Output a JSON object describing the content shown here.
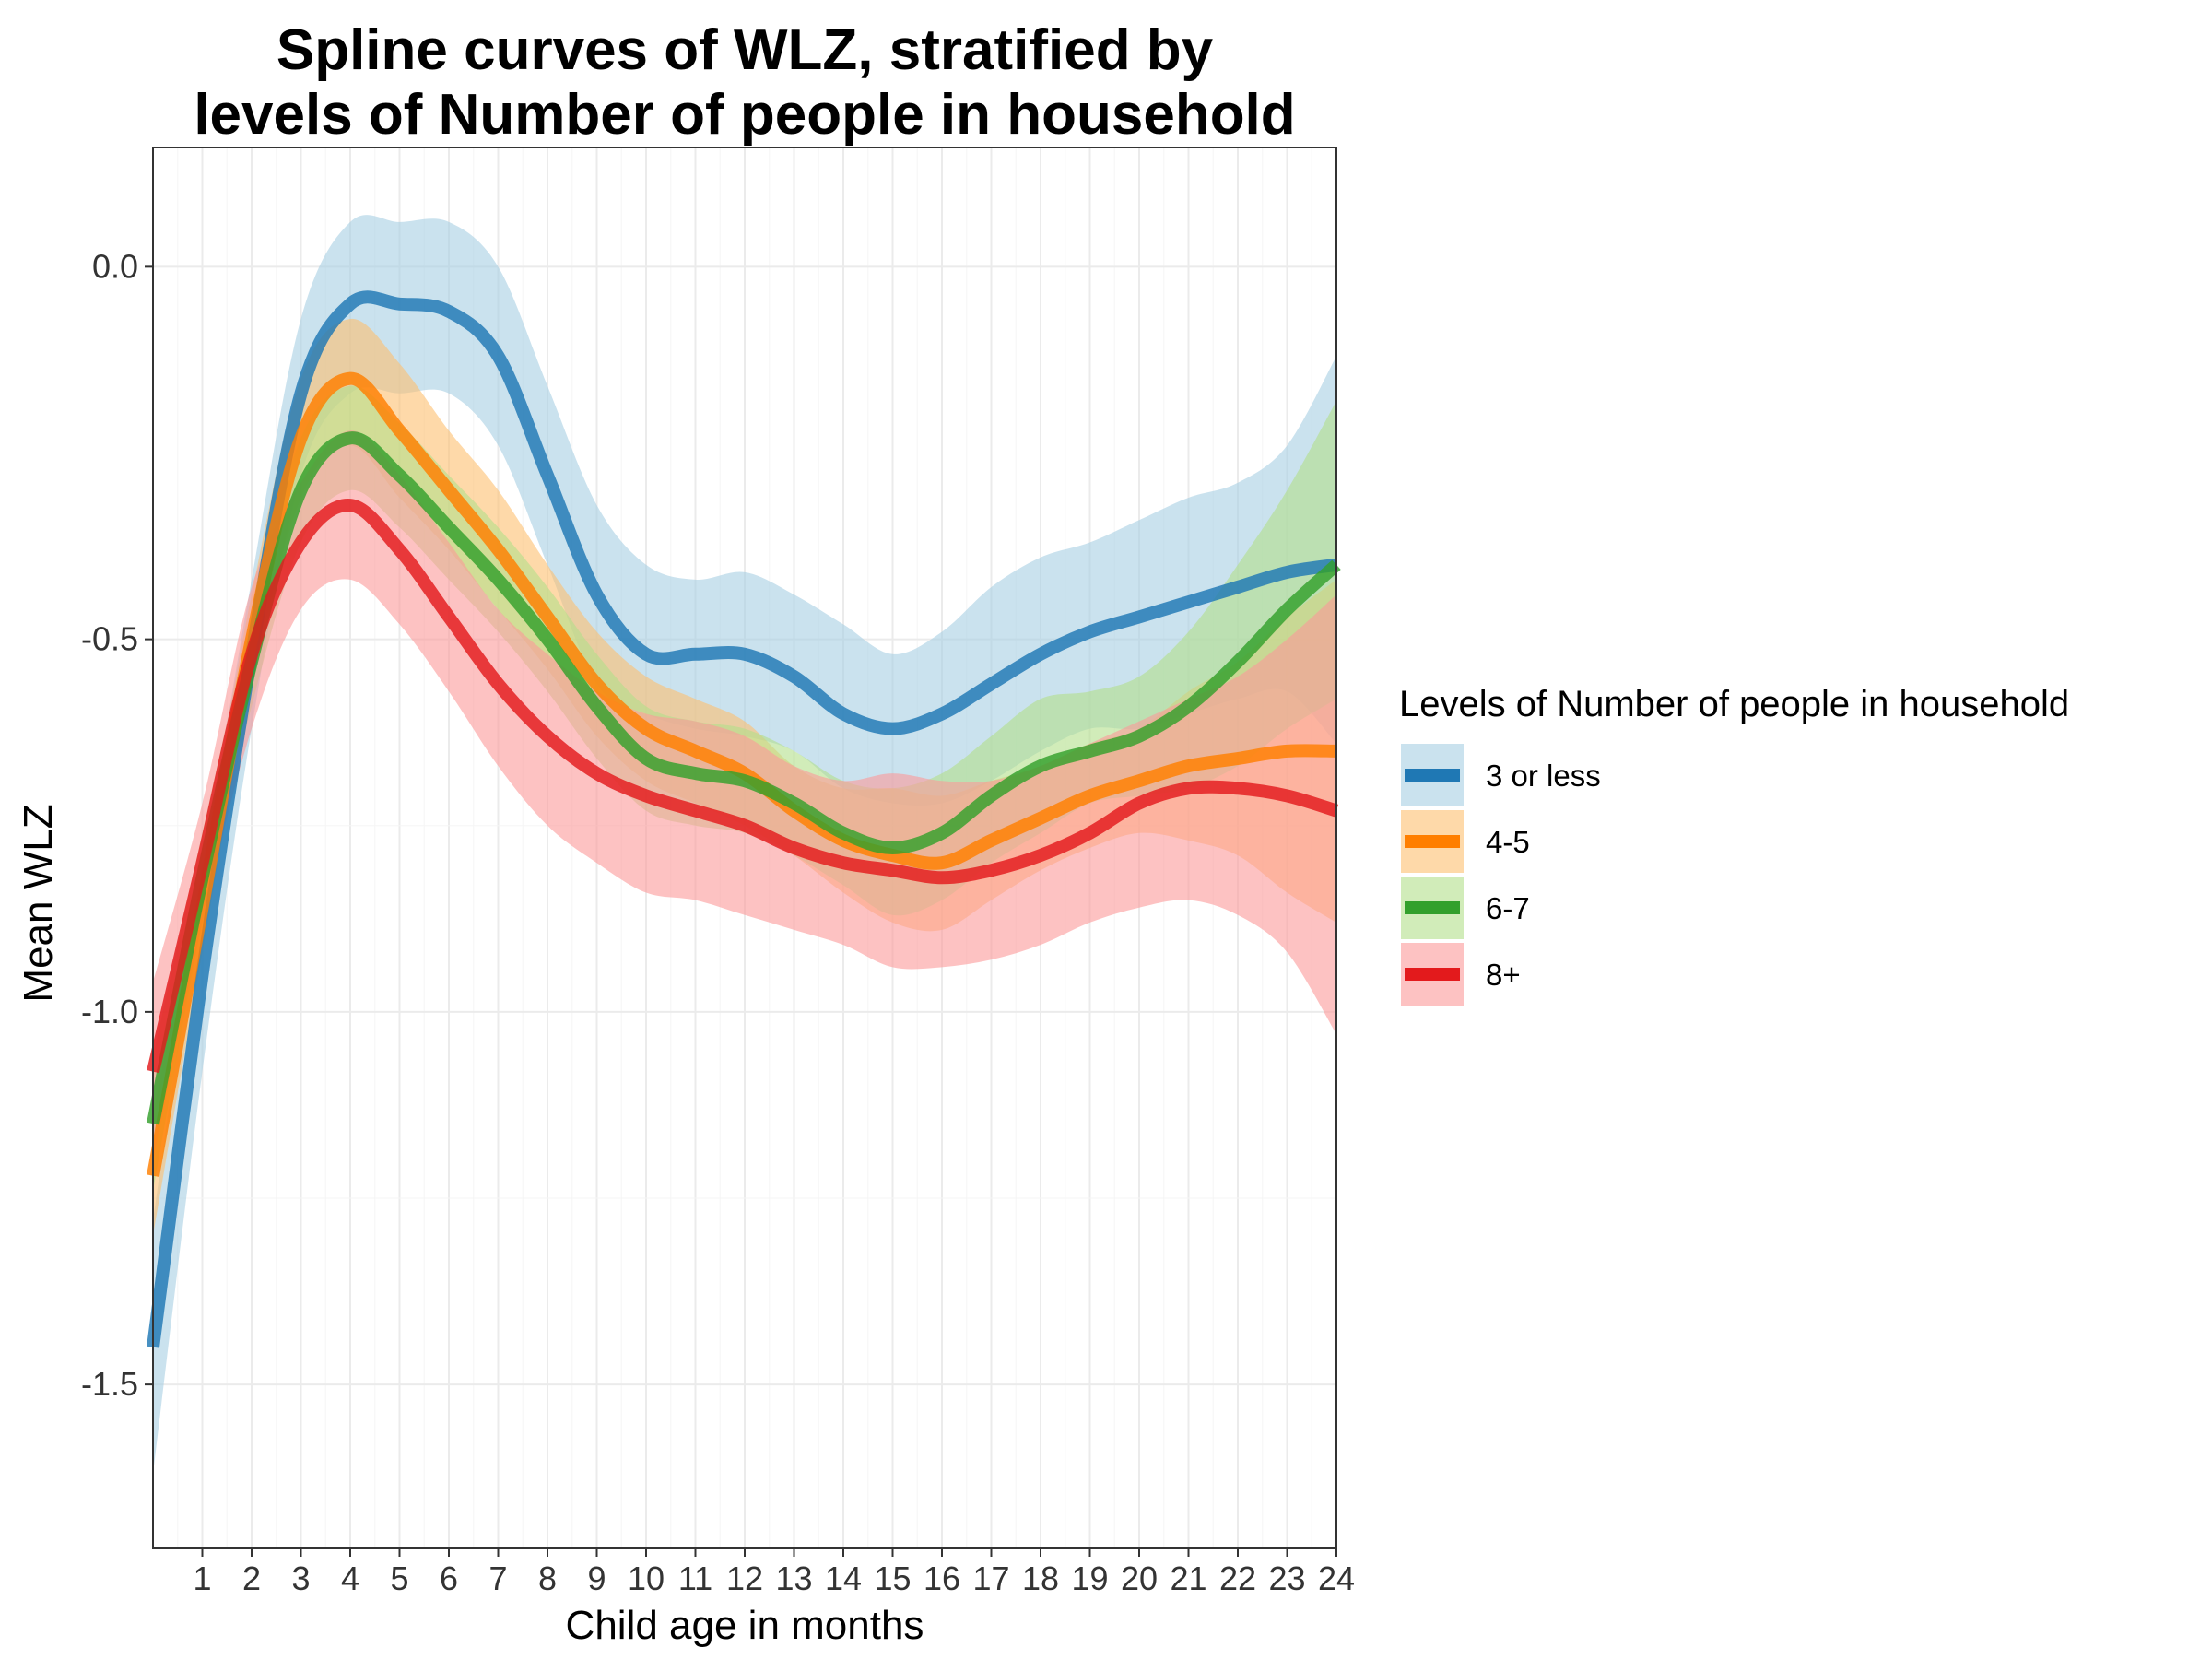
{
  "chart_data": {
    "type": "line",
    "title": "Spline curves of WLZ, stratified by levels of Number of people in household",
    "title_lines": [
      "Spline curves of WLZ, stratified by",
      "levels of Number of people in household"
    ],
    "xlabel": "Child age in months",
    "ylabel": "Mean WLZ",
    "xlim": [
      0,
      24
    ],
    "ylim": [
      -1.72,
      0.16
    ],
    "x_ticks": [
      "1",
      "2",
      "3",
      "4",
      "5",
      "6",
      "7",
      "8",
      "9",
      "10",
      "11",
      "12",
      "13",
      "14",
      "15",
      "16",
      "17",
      "18",
      "19",
      "20",
      "21",
      "22",
      "23",
      "24"
    ],
    "y_ticks": [
      "0.0",
      "-0.5",
      "-1.0",
      "-1.5"
    ],
    "grid": true,
    "legend_title": "Levels of Number of people in household",
    "legend_position": "right",
    "x": [
      0,
      1,
      2,
      3,
      4,
      5,
      6,
      7,
      8,
      9,
      10,
      11,
      12,
      13,
      14,
      15,
      16,
      17,
      18,
      19,
      20,
      21,
      22,
      23,
      24
    ],
    "series": [
      {
        "name": "3 or less",
        "color": "#1f78b4",
        "band_color": "#a6cee3",
        "values": [
          -1.45,
          -0.95,
          -0.52,
          -0.17,
          -0.05,
          -0.05,
          -0.06,
          -0.12,
          -0.28,
          -0.44,
          -0.52,
          -0.52,
          -0.52,
          -0.55,
          -0.6,
          -0.62,
          -0.6,
          -0.56,
          -0.52,
          -0.49,
          -0.47,
          -0.45,
          -0.43,
          -0.41,
          -0.4
        ],
        "lower": [
          -1.62,
          -1.08,
          -0.62,
          -0.28,
          -0.17,
          -0.17,
          -0.17,
          -0.24,
          -0.4,
          -0.56,
          -0.6,
          -0.62,
          -0.63,
          -0.65,
          -0.7,
          -0.72,
          -0.72,
          -0.69,
          -0.65,
          -0.62,
          -0.62,
          -0.6,
          -0.58,
          -0.57,
          -0.64
        ],
        "upper": [
          -1.28,
          -0.82,
          -0.42,
          -0.07,
          0.06,
          0.06,
          0.06,
          0.0,
          -0.16,
          -0.32,
          -0.4,
          -0.42,
          -0.41,
          -0.44,
          -0.48,
          -0.52,
          -0.49,
          -0.43,
          -0.39,
          -0.37,
          -0.34,
          -0.31,
          -0.29,
          -0.24,
          -0.12
        ]
      },
      {
        "name": "4-5",
        "color": "#ff7f00",
        "band_color": "#fdbf6f",
        "values": [
          -1.22,
          -0.86,
          -0.5,
          -0.23,
          -0.15,
          -0.22,
          -0.3,
          -0.38,
          -0.47,
          -0.56,
          -0.62,
          -0.65,
          -0.68,
          -0.73,
          -0.77,
          -0.79,
          -0.8,
          -0.77,
          -0.74,
          -0.71,
          -0.69,
          -0.67,
          -0.66,
          -0.65,
          -0.65
        ],
        "lower": [
          -1.3,
          -0.92,
          -0.56,
          -0.31,
          -0.24,
          -0.31,
          -0.38,
          -0.46,
          -0.54,
          -0.63,
          -0.69,
          -0.72,
          -0.75,
          -0.79,
          -0.84,
          -0.88,
          -0.89,
          -0.85,
          -0.81,
          -0.78,
          -0.76,
          -0.77,
          -0.79,
          -0.84,
          -0.88
        ],
        "upper": [
          -1.14,
          -0.8,
          -0.44,
          -0.15,
          -0.07,
          -0.13,
          -0.22,
          -0.3,
          -0.4,
          -0.49,
          -0.55,
          -0.58,
          -0.61,
          -0.67,
          -0.7,
          -0.7,
          -0.71,
          -0.69,
          -0.67,
          -0.64,
          -0.62,
          -0.57,
          -0.53,
          -0.47,
          -0.42
        ]
      },
      {
        "name": "6-7",
        "color": "#33a02c",
        "band_color": "#b2df8a",
        "values": [
          -1.15,
          -0.82,
          -0.53,
          -0.3,
          -0.23,
          -0.28,
          -0.35,
          -0.42,
          -0.5,
          -0.59,
          -0.66,
          -0.68,
          -0.69,
          -0.72,
          -0.76,
          -0.78,
          -0.76,
          -0.71,
          -0.67,
          -0.65,
          -0.63,
          -0.59,
          -0.53,
          -0.46,
          -0.4
        ],
        "lower": [
          -1.24,
          -0.88,
          -0.59,
          -0.37,
          -0.3,
          -0.35,
          -0.42,
          -0.49,
          -0.57,
          -0.66,
          -0.73,
          -0.75,
          -0.76,
          -0.79,
          -0.83,
          -0.87,
          -0.85,
          -0.8,
          -0.76,
          -0.72,
          -0.71,
          -0.7,
          -0.67,
          -0.62,
          -0.58
        ],
        "upper": [
          -1.06,
          -0.76,
          -0.47,
          -0.23,
          -0.16,
          -0.21,
          -0.28,
          -0.35,
          -0.43,
          -0.52,
          -0.59,
          -0.61,
          -0.62,
          -0.65,
          -0.69,
          -0.7,
          -0.68,
          -0.63,
          -0.58,
          -0.57,
          -0.55,
          -0.49,
          -0.4,
          -0.3,
          -0.18
        ]
      },
      {
        "name": "8+",
        "color": "#e31a1c",
        "band_color": "#fb9a99",
        "values": [
          -1.08,
          -0.8,
          -0.52,
          -0.37,
          -0.32,
          -0.38,
          -0.47,
          -0.56,
          -0.63,
          -0.68,
          -0.71,
          -0.73,
          -0.75,
          -0.78,
          -0.8,
          -0.81,
          -0.82,
          -0.81,
          -0.79,
          -0.76,
          -0.72,
          -0.7,
          -0.7,
          -0.71,
          -0.73
        ],
        "lower": [
          -1.2,
          -0.88,
          -0.62,
          -0.46,
          -0.42,
          -0.48,
          -0.57,
          -0.67,
          -0.75,
          -0.8,
          -0.84,
          -0.85,
          -0.87,
          -0.89,
          -0.91,
          -0.94,
          -0.94,
          -0.93,
          -0.91,
          -0.88,
          -0.86,
          -0.85,
          -0.87,
          -0.92,
          -1.03
        ],
        "upper": [
          -0.96,
          -0.72,
          -0.43,
          -0.29,
          -0.22,
          -0.28,
          -0.37,
          -0.46,
          -0.52,
          -0.57,
          -0.6,
          -0.61,
          -0.63,
          -0.67,
          -0.69,
          -0.68,
          -0.69,
          -0.69,
          -0.67,
          -0.64,
          -0.61,
          -0.58,
          -0.55,
          -0.5,
          -0.44
        ]
      }
    ]
  }
}
